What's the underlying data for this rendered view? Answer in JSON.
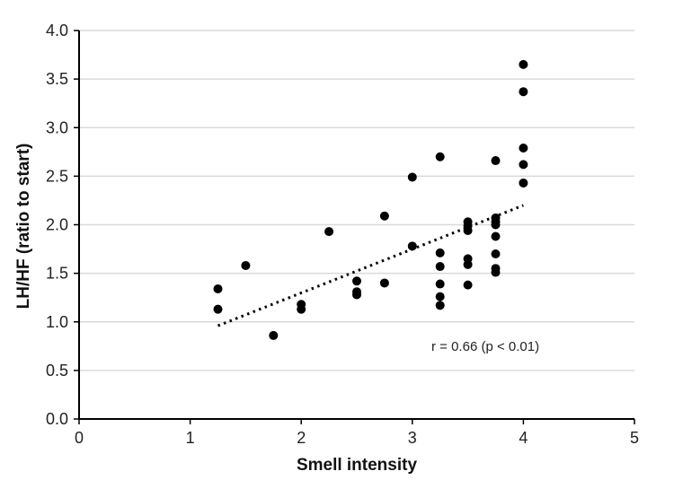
{
  "chart_data": {
    "type": "scatter",
    "xlabel": "Smell intensity",
    "ylabel": "LH/HF (ratio to start)",
    "xlim": [
      0,
      5
    ],
    "ylim": [
      0,
      4.0
    ],
    "x_ticks": [
      "0",
      "1",
      "2",
      "3",
      "4",
      "5"
    ],
    "y_ticks": [
      "0.0",
      "0.5",
      "1.0",
      "1.5",
      "2.0",
      "2.5",
      "3.0",
      "3.5",
      "4.0"
    ],
    "grid": "horizontal",
    "points": [
      {
        "x": 1.25,
        "y": 1.34
      },
      {
        "x": 1.25,
        "y": 1.13
      },
      {
        "x": 1.5,
        "y": 1.58
      },
      {
        "x": 1.75,
        "y": 0.86
      },
      {
        "x": 2.0,
        "y": 1.18
      },
      {
        "x": 2.0,
        "y": 1.13
      },
      {
        "x": 2.25,
        "y": 1.93
      },
      {
        "x": 2.5,
        "y": 1.42
      },
      {
        "x": 2.5,
        "y": 1.31
      },
      {
        "x": 2.5,
        "y": 1.28
      },
      {
        "x": 2.75,
        "y": 2.09
      },
      {
        "x": 2.75,
        "y": 1.4
      },
      {
        "x": 3.0,
        "y": 2.49
      },
      {
        "x": 3.0,
        "y": 1.78
      },
      {
        "x": 3.25,
        "y": 2.7
      },
      {
        "x": 3.25,
        "y": 1.71
      },
      {
        "x": 3.25,
        "y": 1.57
      },
      {
        "x": 3.25,
        "y": 1.39
      },
      {
        "x": 3.25,
        "y": 1.26
      },
      {
        "x": 3.25,
        "y": 1.17
      },
      {
        "x": 3.5,
        "y": 2.03
      },
      {
        "x": 3.5,
        "y": 1.99
      },
      {
        "x": 3.5,
        "y": 1.94
      },
      {
        "x": 3.5,
        "y": 1.65
      },
      {
        "x": 3.5,
        "y": 1.59
      },
      {
        "x": 3.5,
        "y": 1.38
      },
      {
        "x": 3.75,
        "y": 2.66
      },
      {
        "x": 3.75,
        "y": 2.07
      },
      {
        "x": 3.75,
        "y": 2.03
      },
      {
        "x": 3.75,
        "y": 2.0
      },
      {
        "x": 3.75,
        "y": 1.88
      },
      {
        "x": 3.75,
        "y": 1.7
      },
      {
        "x": 3.75,
        "y": 1.55
      },
      {
        "x": 3.75,
        "y": 1.51
      },
      {
        "x": 4.0,
        "y": 3.65
      },
      {
        "x": 4.0,
        "y": 3.37
      },
      {
        "x": 4.0,
        "y": 2.79
      },
      {
        "x": 4.0,
        "y": 2.62
      },
      {
        "x": 4.0,
        "y": 2.43
      }
    ],
    "trendline": {
      "x": [
        1.25,
        4.0
      ],
      "y": [
        0.96,
        2.2
      ],
      "style": "dotted"
    },
    "annotation": "r = 0.66 (p < 0.01)",
    "colors": {
      "points": "#000000",
      "grid": "#d9d9d9",
      "axis": "#000000"
    }
  }
}
